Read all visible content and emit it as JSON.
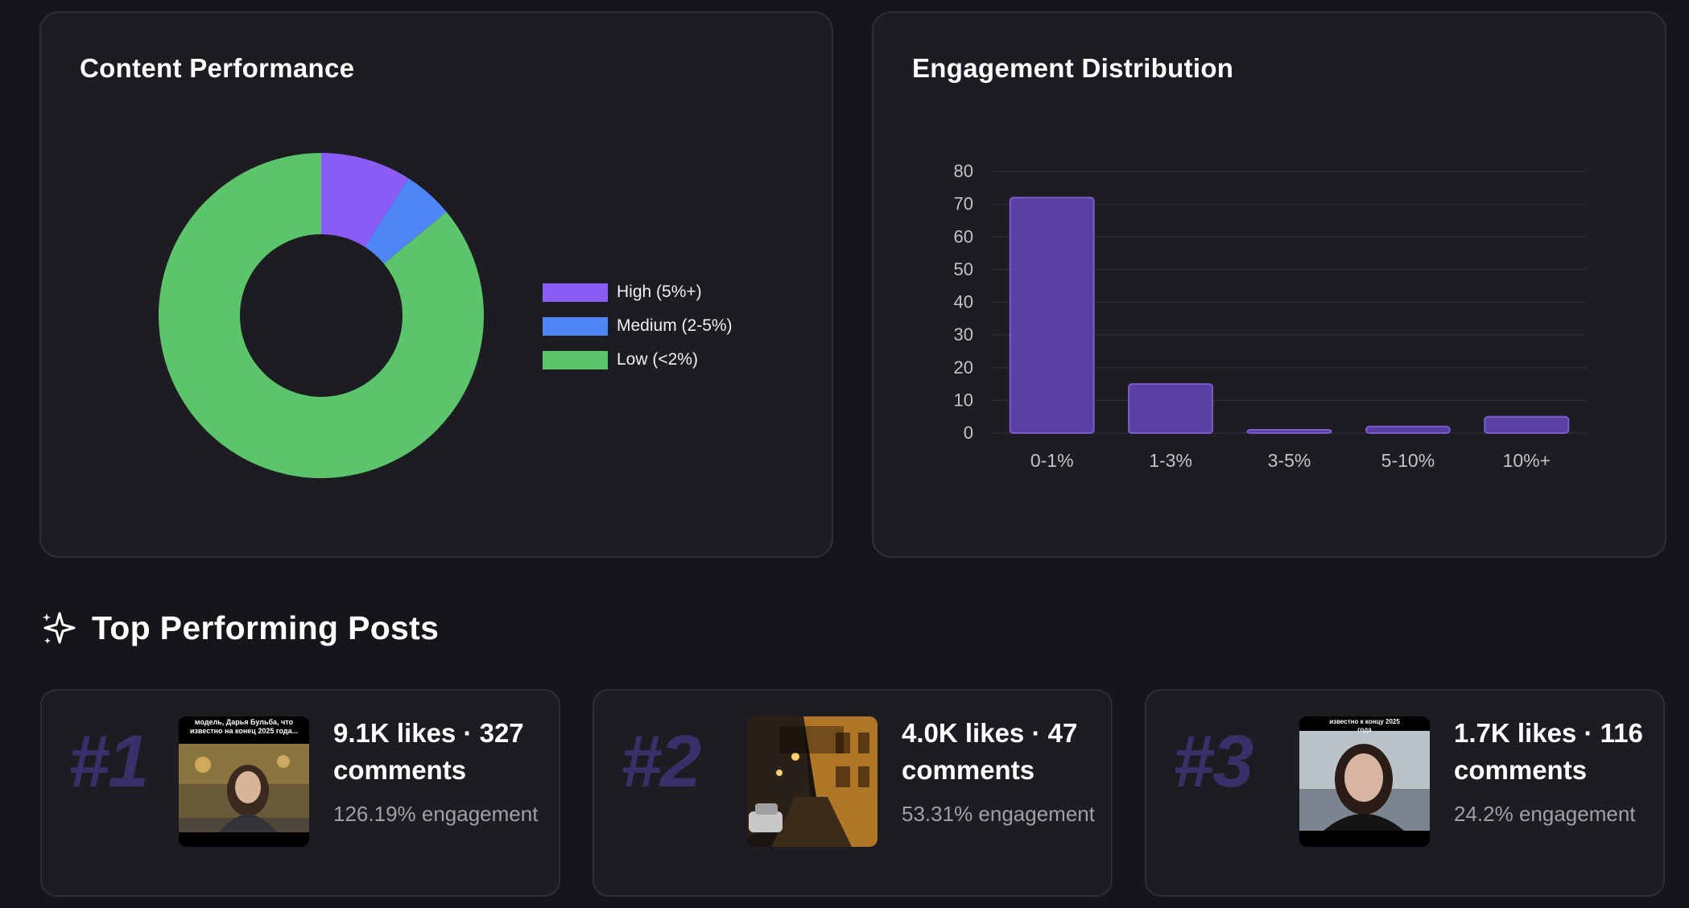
{
  "content_performance": {
    "title": "Content Performance",
    "chart_data": {
      "type": "pie",
      "title": "Content Performance",
      "donut": true,
      "categories": [
        "High (5%+)",
        "Medium (2-5%)",
        "Low (<2%)"
      ],
      "values": [
        9,
        5,
        86
      ],
      "colors": [
        "#8b5cf6",
        "#4f86f7",
        "#5cc46a"
      ],
      "legend_position": "right"
    }
  },
  "engagement_distribution": {
    "title": "Engagement Distribution",
    "chart_data": {
      "type": "bar",
      "title": "Engagement Distribution",
      "categories": [
        "0-1%",
        "1-3%",
        "3-5%",
        "5-10%",
        "10%+"
      ],
      "values": [
        72,
        15,
        1,
        2,
        5
      ],
      "ylim": [
        0,
        80
      ],
      "yticks": [
        0,
        10,
        20,
        30,
        40,
        50,
        60,
        70,
        80
      ],
      "grid": true,
      "bar_color": "#5b3fa0",
      "bar_border": "#7a5cd1"
    }
  },
  "top_posts": {
    "heading": "Top Performing Posts",
    "heading_icon": "sparkle-icon",
    "posts": [
      {
        "rank": "#1",
        "stats": "9.1K likes · 327 comments",
        "engagement": "126.19% engagement",
        "thumb_caption": "модель, Дарья Бульба, что известно на конец 2025 года..."
      },
      {
        "rank": "#2",
        "stats": "4.0K likes · 47 comments",
        "engagement": "53.31% engagement",
        "thumb_caption": ""
      },
      {
        "rank": "#3",
        "stats": "1.7K likes · 116 comments",
        "engagement": "24.2% engagement",
        "thumb_caption": "известно к концу 2025 года"
      }
    ]
  }
}
